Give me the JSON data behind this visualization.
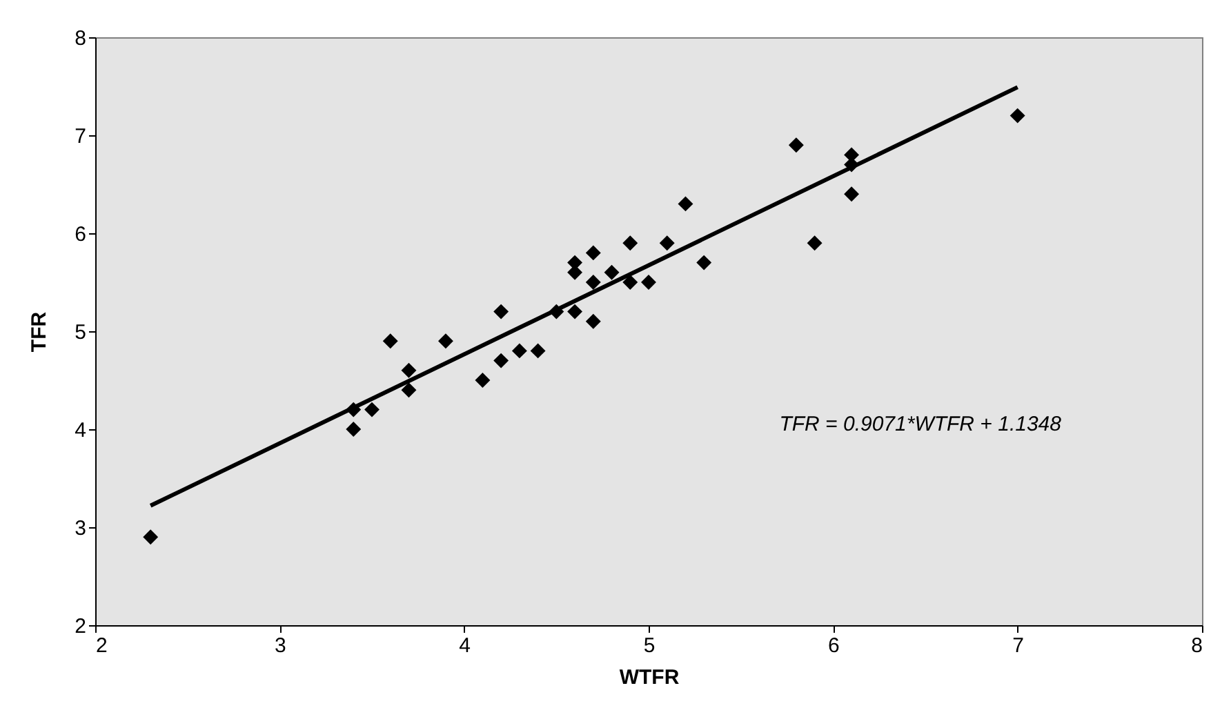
{
  "chart_data": {
    "type": "scatter",
    "xlabel": "WTFR",
    "ylabel": "TFR",
    "xlim": [
      2,
      8
    ],
    "ylim": [
      2,
      8
    ],
    "xticks": [
      2,
      3,
      4,
      5,
      6,
      7,
      8
    ],
    "yticks": [
      2,
      3,
      4,
      5,
      6,
      7,
      8
    ],
    "grid": false,
    "marker": "diamond",
    "annotations": [
      "TFR = 0.9071*WTFR + 1.1348"
    ],
    "series": [
      {
        "color": "#000000",
        "x": [
          2.3,
          3.4,
          3.4,
          3.5,
          3.6,
          3.7,
          3.7,
          3.9,
          4.1,
          4.2,
          4.2,
          4.3,
          4.4,
          4.5,
          4.6,
          4.6,
          4.6,
          4.7,
          4.7,
          4.7,
          4.8,
          4.9,
          4.9,
          5.0,
          5.1,
          5.2,
          5.3,
          5.8,
          5.9,
          6.1,
          6.1,
          6.1,
          7.0
        ],
        "values": [
          2.9,
          4.2,
          4.0,
          4.2,
          4.9,
          4.6,
          4.4,
          4.9,
          4.5,
          5.2,
          4.7,
          4.8,
          4.8,
          5.2,
          5.7,
          5.6,
          5.2,
          5.8,
          5.5,
          5.1,
          5.6,
          5.9,
          5.5,
          5.5,
          5.9,
          6.3,
          5.7,
          6.9,
          5.9,
          6.8,
          6.7,
          6.4,
          7.2
        ]
      },
      {
        "type": "line",
        "color": "#000000",
        "marker": "none",
        "x": [
          2.3,
          7.0
        ],
        "values": [
          3.22,
          7.49
        ]
      }
    ]
  }
}
